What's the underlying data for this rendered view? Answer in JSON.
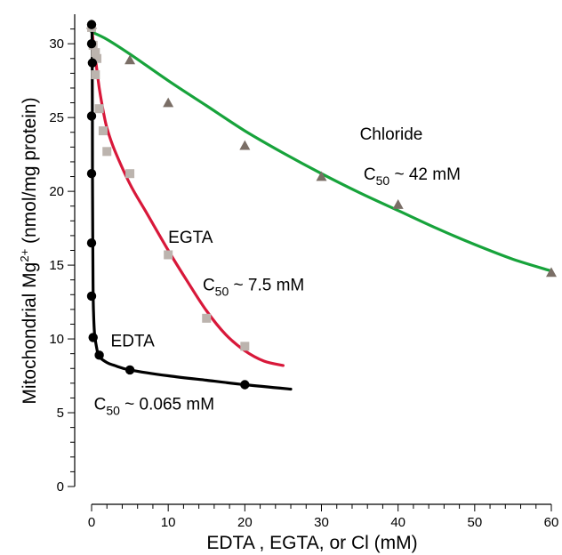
{
  "chart_data": {
    "type": "scatter",
    "title": "",
    "xlabel": "EDTA , EGTA, or Cl (mM)",
    "ylabel": {
      "main": "Mitochondrial Mg",
      "sup": "2+",
      "rest": " (nmol/mg protein)"
    },
    "xlim": [
      0,
      60
    ],
    "ylim": [
      0,
      32
    ],
    "x_ticks": [
      0,
      10,
      20,
      30,
      40,
      50,
      60
    ],
    "y_ticks": [
      0,
      5,
      10,
      15,
      20,
      25,
      30
    ],
    "grid": false,
    "series": [
      {
        "name": "Chloride",
        "color": "#17a33b",
        "marker": "triangle",
        "marker_color": "#7a6e66",
        "points": [
          [
            0,
            31.3
          ],
          [
            5,
            28.9
          ],
          [
            10,
            26.0
          ],
          [
            20,
            23.1
          ],
          [
            30,
            21.0
          ],
          [
            40,
            19.1
          ],
          [
            60,
            14.5
          ]
        ],
        "fit": [
          [
            0,
            30.8
          ],
          [
            2,
            30.3
          ],
          [
            5,
            29.3
          ],
          [
            10,
            27.5
          ],
          [
            15,
            25.8
          ],
          [
            20,
            24.1
          ],
          [
            25,
            22.6
          ],
          [
            30,
            21.2
          ],
          [
            35,
            19.9
          ],
          [
            40,
            18.7
          ],
          [
            45,
            17.5
          ],
          [
            50,
            16.4
          ],
          [
            55,
            15.4
          ],
          [
            60,
            14.6
          ]
        ]
      },
      {
        "name": "EGTA",
        "color": "#d8183a",
        "marker": "square",
        "marker_color": "#bcb4ae",
        "points": [
          [
            0,
            31.1
          ],
          [
            0.2,
            29.9
          ],
          [
            0.5,
            29.4
          ],
          [
            0.7,
            29.0
          ],
          [
            0.5,
            27.9
          ],
          [
            1,
            25.6
          ],
          [
            1.5,
            24.1
          ],
          [
            2,
            22.7
          ],
          [
            5,
            21.2
          ],
          [
            10,
            15.7
          ],
          [
            15,
            11.4
          ],
          [
            20,
            9.5
          ]
        ],
        "fit": [
          [
            0,
            31.2
          ],
          [
            0.2,
            30.2
          ],
          [
            0.5,
            29.0
          ],
          [
            1,
            27.0
          ],
          [
            1.5,
            25.5
          ],
          [
            2,
            24.3
          ],
          [
            3,
            22.8
          ],
          [
            5,
            20.5
          ],
          [
            7,
            18.7
          ],
          [
            10,
            16.0
          ],
          [
            12.5,
            13.9
          ],
          [
            15,
            11.9
          ],
          [
            17.5,
            10.3
          ],
          [
            20,
            9.2
          ],
          [
            22.5,
            8.5
          ],
          [
            25,
            8.2
          ]
        ]
      },
      {
        "name": "EDTA",
        "color": "#000000",
        "marker": "circle",
        "marker_color": "#000000",
        "points": [
          [
            0,
            31.3
          ],
          [
            0,
            30.0
          ],
          [
            0.1,
            28.7
          ],
          [
            0,
            25.1
          ],
          [
            0,
            21.2
          ],
          [
            0,
            16.5
          ],
          [
            0,
            12.9
          ],
          [
            0.2,
            10.1
          ],
          [
            1,
            8.9
          ],
          [
            5,
            7.9
          ],
          [
            20,
            6.9
          ]
        ],
        "fit": [
          [
            0.05,
            31.3
          ],
          [
            0.08,
            29.0
          ],
          [
            0.1,
            25.0
          ],
          [
            0.12,
            21.0
          ],
          [
            0.15,
            17.0
          ],
          [
            0.18,
            14.0
          ],
          [
            0.25,
            11.8
          ],
          [
            0.4,
            10.3
          ],
          [
            0.7,
            9.3
          ],
          [
            1,
            8.8
          ],
          [
            2,
            8.4
          ],
          [
            3,
            8.2
          ],
          [
            5,
            7.9
          ],
          [
            10,
            7.5
          ],
          [
            15,
            7.2
          ],
          [
            20,
            6.9
          ],
          [
            26,
            6.6
          ]
        ]
      }
    ],
    "annotations": [
      {
        "id": "chloride-label",
        "text": "Chloride",
        "x": 35,
        "y": 23.5
      },
      {
        "id": "chloride-c50",
        "base": "C",
        "sub": "50",
        "rest": " ~ 42 mM",
        "x": 35.5,
        "y": 20.8
      },
      {
        "id": "egta-label",
        "text": "EGTA",
        "x": 10,
        "y": 16.5
      },
      {
        "id": "egta-c50",
        "base": "C",
        "sub": "50",
        "rest": " ~ 7.5 mM",
        "x": 14.5,
        "y": 13.3
      },
      {
        "id": "edta-label",
        "text": "EDTA",
        "x": 2.5,
        "y": 9.5
      },
      {
        "id": "edta-c50",
        "base": "C",
        "sub": "50",
        "rest": " ~ 0.065 mM",
        "x": 0.3,
        "y": 5.2
      }
    ]
  }
}
